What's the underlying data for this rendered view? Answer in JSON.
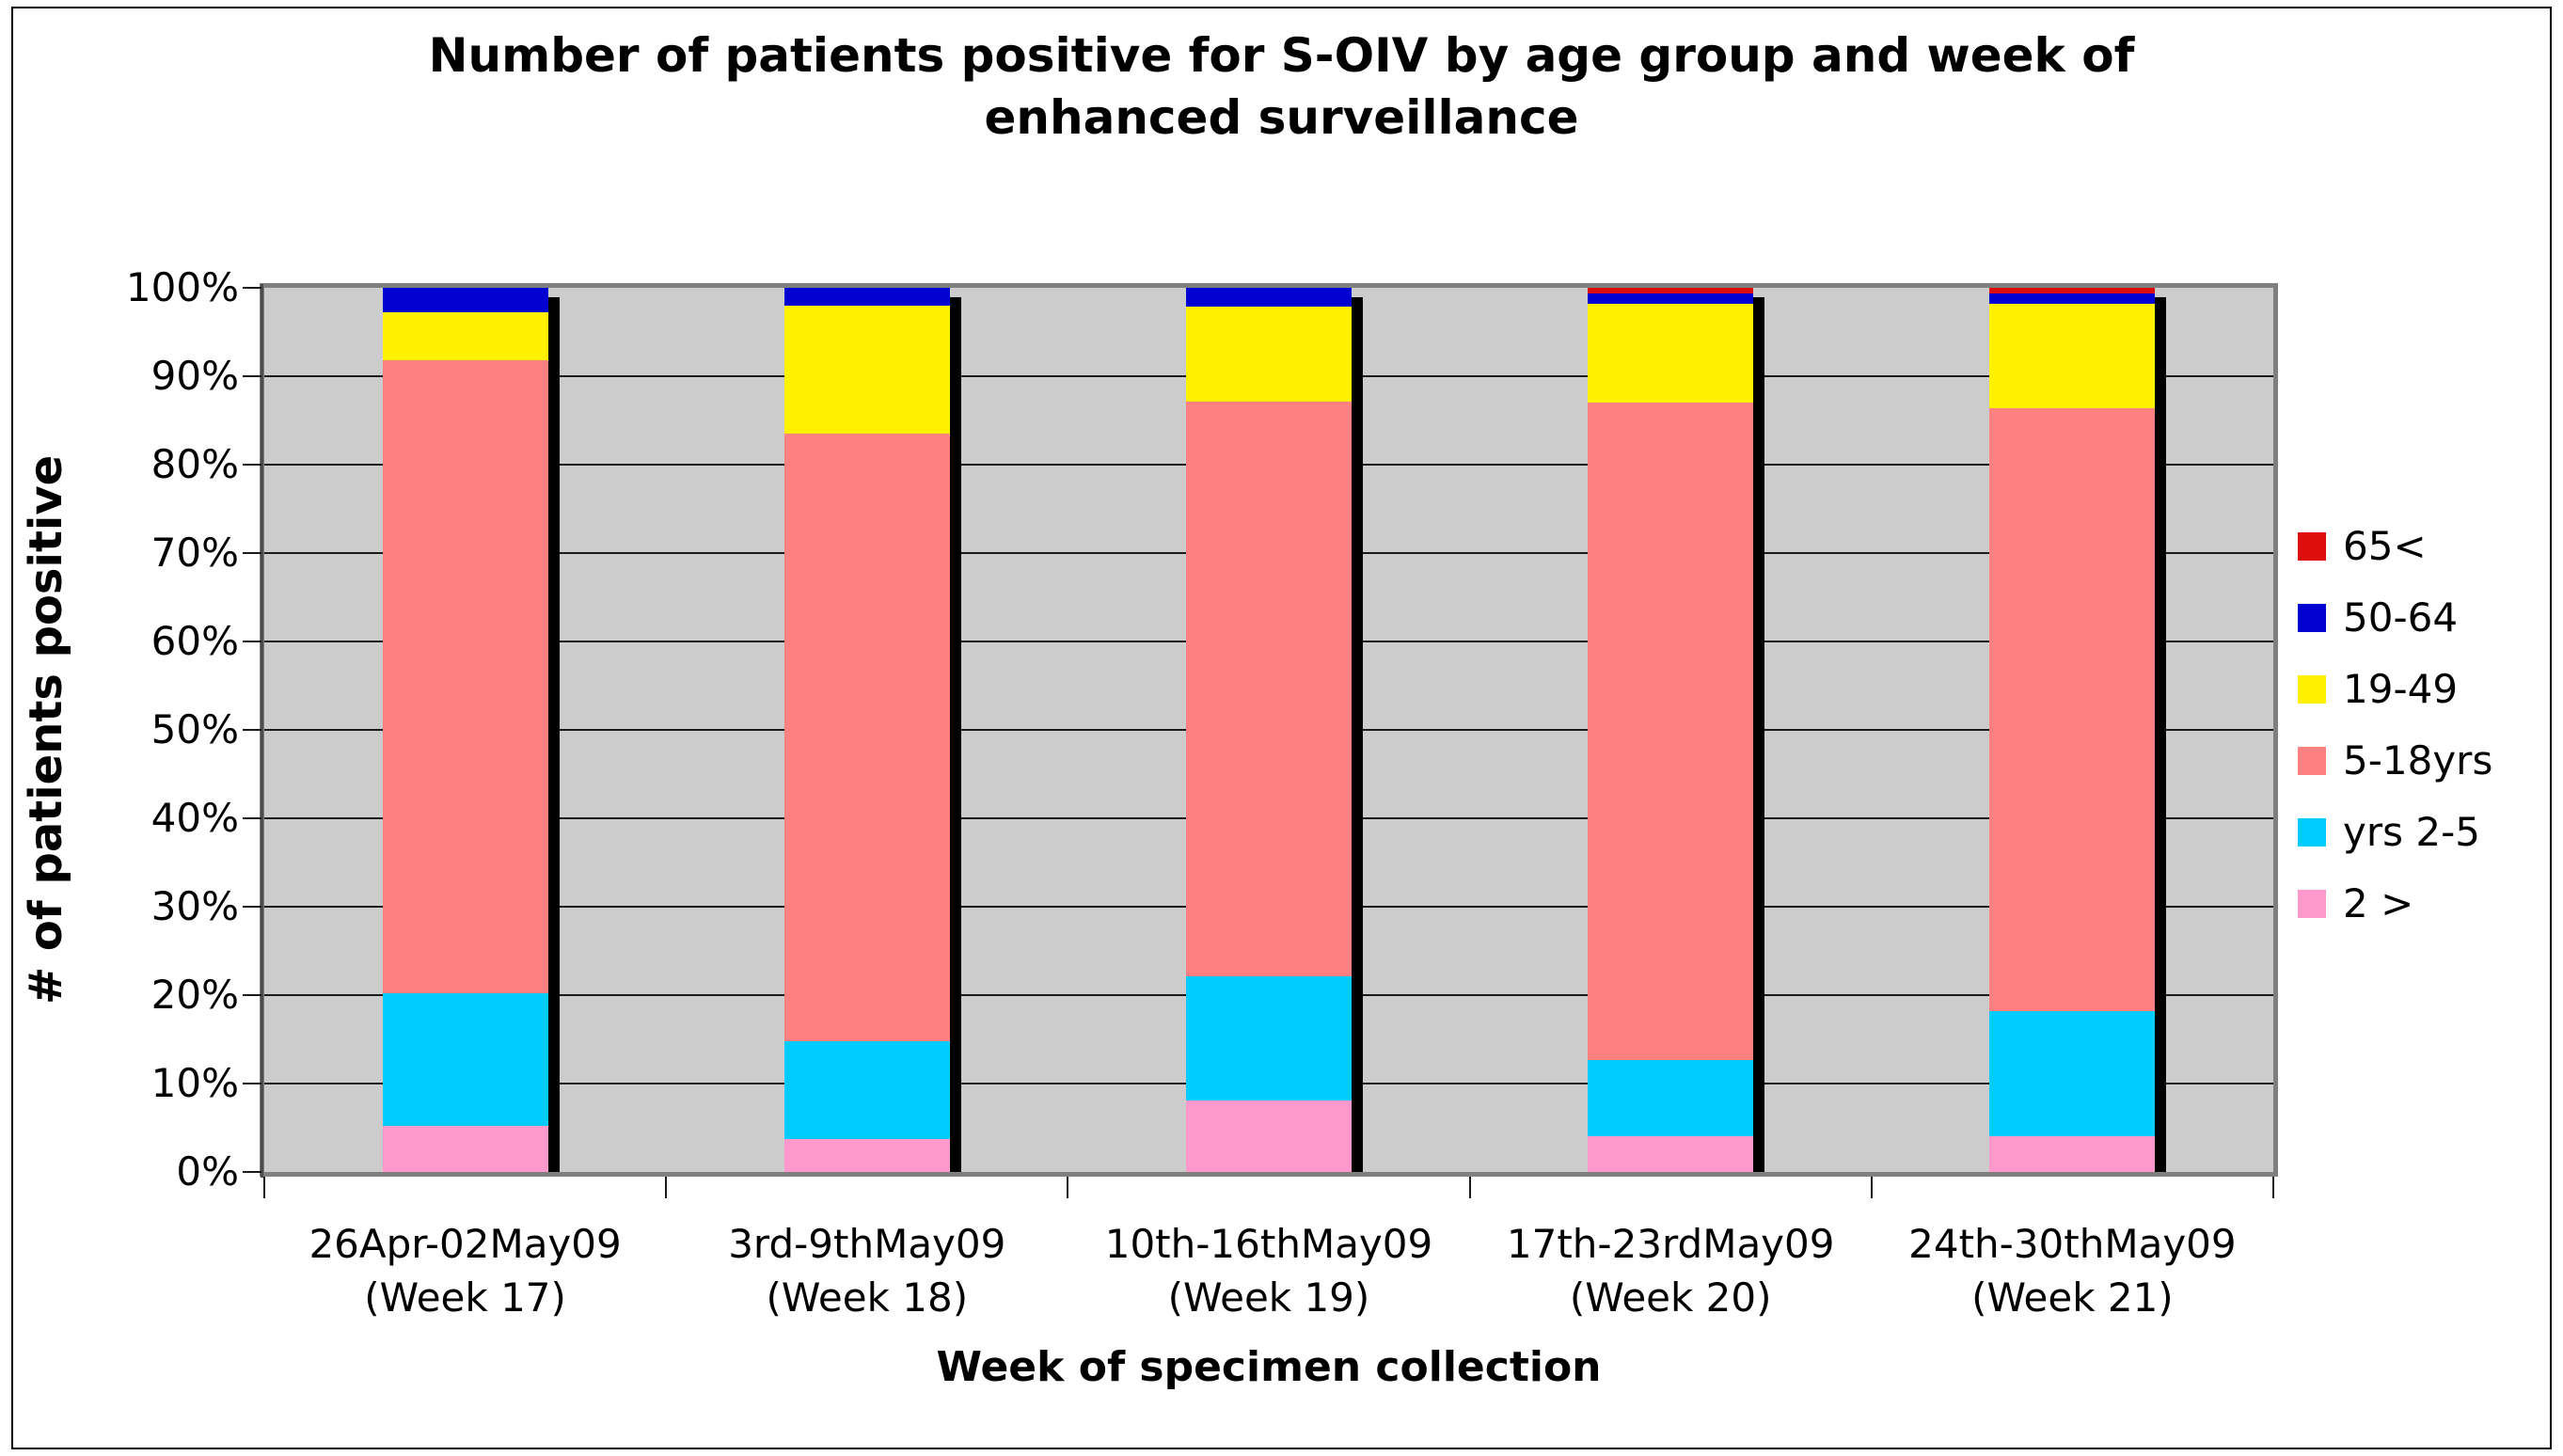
{
  "figure": {
    "border_color": "#000000",
    "background": "#FFFFFF"
  },
  "title": {
    "full": "Number of patients positive for S-OIV by age group and week of enhanced surveillance",
    "line1": "Number of patients positive for S-OIV by age group and week of",
    "line2": "enhanced surveillance"
  },
  "y_axis": {
    "title": "# of patients positive",
    "tick_labels": [
      "100%",
      "90%",
      "80%",
      "70%",
      "60%",
      "50%",
      "40%",
      "30%",
      "20%",
      "10%",
      "0%"
    ]
  },
  "x_axis": {
    "title": "Week of specimen collection"
  },
  "plot_style": {
    "background": "#CCCCCC",
    "gridline_color": "#1A1A1A",
    "border_color": "#7F7F7F",
    "bar_shadow_color": "#000000"
  },
  "legend": {
    "position": "right",
    "entries": [
      {
        "label": "65<",
        "color": "#DD0D0D"
      },
      {
        "label": "50-64",
        "color": "#0000D0"
      },
      {
        "label": "19-49",
        "color": "#FFF100"
      },
      {
        "label": "5-18yrs",
        "color": "#FF8080"
      },
      {
        "label": "yrs 2-5",
        "color": "#00CCFF"
      },
      {
        "label": "2 >",
        "color": "#FF99CC"
      }
    ]
  },
  "chart_data": {
    "type": "bar",
    "variant": "100% stacked column",
    "title": "Number of patients positive for S-OIV by age group and week of enhanced surveillance",
    "xlabel": "Week of specimen collection",
    "ylabel": "# of patients positive",
    "ylim": [
      0,
      100
    ],
    "y_tick_format": "percent, every 10%",
    "grid": "horizontal black lines every 10% on gray plot area",
    "legend_position": "right",
    "categories": [
      {
        "line1": "26Apr-02May09",
        "line2": "(Week 17)"
      },
      {
        "line1": "3rd-9thMay09",
        "line2": "(Week 18)"
      },
      {
        "line1": "10th-16thMay09",
        "line2": "(Week 19)"
      },
      {
        "line1": "17th-23rdMay09",
        "line2": "(Week 20)"
      },
      {
        "line1": "24th-30thMay09",
        "line2": "(Week 21)"
      }
    ],
    "stack_order_bottom_to_top": [
      "2 >",
      "yrs 2-5",
      "5-18yrs",
      "19-49",
      "50-64",
      "65<"
    ],
    "series": [
      {
        "name": "2 >",
        "color": "#FF99CC",
        "values_pct": [
          5.2,
          3.7,
          8.1,
          4.0,
          4.0
        ]
      },
      {
        "name": "yrs 2-5",
        "color": "#00CCFF",
        "values_pct": [
          15.0,
          11.1,
          14.0,
          8.7,
          14.2
        ]
      },
      {
        "name": "5-18yrs",
        "color": "#FF8080",
        "values_pct": [
          71.6,
          68.7,
          65.0,
          74.3,
          68.2
        ]
      },
      {
        "name": "19-49",
        "color": "#FFF100",
        "values_pct": [
          5.4,
          14.5,
          10.8,
          11.2,
          11.8
        ]
      },
      {
        "name": "50-64",
        "color": "#0000D0",
        "values_pct": [
          2.8,
          2.0,
          2.1,
          1.2,
          1.2
        ]
      },
      {
        "name": "65<",
        "color": "#DD0D0D",
        "values_pct": [
          0.0,
          0.0,
          0.0,
          0.6,
          0.6
        ]
      }
    ]
  }
}
